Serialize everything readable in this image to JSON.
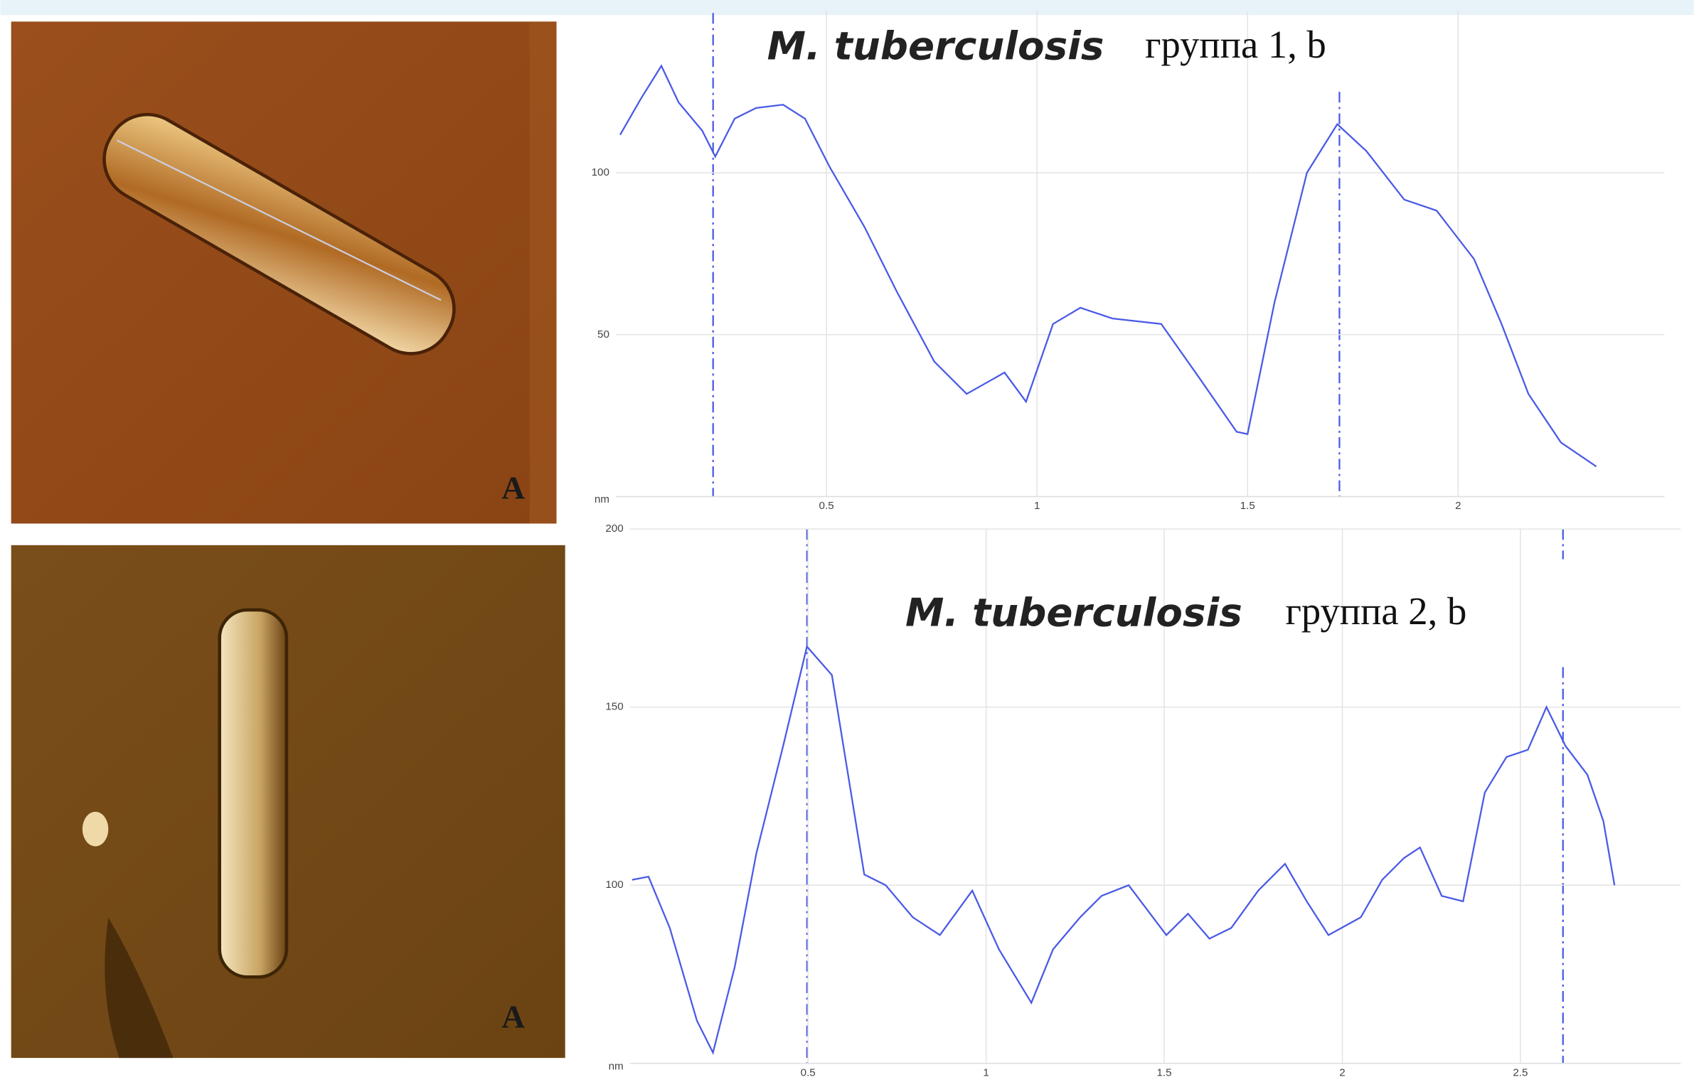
{
  "chart_data": [
    {
      "type": "line",
      "title": "M. tuberculosis",
      "subtitle": "группа 1, b",
      "y_label": "nm",
      "color": "#4a5ae6",
      "grid": true,
      "xlim": [
        0,
        2.49
      ],
      "xticks": [
        0.5,
        1,
        1.5,
        2
      ],
      "ylim": [
        0,
        150
      ],
      "yticks": [
        50,
        100
      ],
      "x": [
        0.01,
        0.06,
        0.108,
        0.149,
        0.205,
        0.236,
        0.282,
        0.333,
        0.397,
        0.449,
        0.508,
        0.59,
        0.667,
        0.756,
        0.833,
        0.923,
        0.974,
        1.038,
        1.103,
        1.179,
        1.295,
        1.385,
        1.474,
        1.5,
        1.564,
        1.641,
        1.713,
        1.782,
        1.872,
        1.949,
        2.038,
        2.103,
        2.167,
        2.244,
        2.328
      ],
      "values": [
        111.7,
        123,
        133,
        121.7,
        113,
        105,
        116.7,
        120,
        121,
        116.7,
        101.7,
        83.3,
        63.3,
        41.7,
        31.7,
        38.3,
        29.3,
        53.3,
        58.3,
        55,
        53.3,
        36.7,
        20,
        19.3,
        60,
        100,
        115,
        106.7,
        91.7,
        88.3,
        73.3,
        53.3,
        31.7,
        16.7,
        9.3
      ]
    },
    {
      "type": "line",
      "title": "M. tuberculosis",
      "subtitle": "группа 2, b",
      "y_label": "nm",
      "color": "#4a5ae6",
      "grid": true,
      "xlim": [
        0,
        2.95
      ],
      "xticks": [
        0.5,
        1,
        1.5,
        2,
        2.5
      ],
      "ylim": [
        50,
        200
      ],
      "yticks": [
        100,
        150,
        200
      ],
      "x": [
        0.006,
        0.052,
        0.112,
        0.188,
        0.233,
        0.294,
        0.355,
        0.43,
        0.497,
        0.567,
        0.658,
        0.718,
        0.794,
        0.87,
        0.961,
        1.036,
        1.127,
        1.188,
        1.264,
        1.324,
        1.4,
        1.506,
        1.567,
        1.627,
        1.688,
        1.764,
        1.839,
        1.9,
        1.961,
        2.052,
        2.112,
        2.173,
        2.218,
        2.279,
        2.339,
        2.4,
        2.461,
        2.521,
        2.573,
        2.627,
        2.688,
        2.733,
        2.764
      ],
      "values": [
        101.5,
        102.4,
        88,
        62,
        53,
        77,
        109,
        139,
        167,
        159,
        103,
        100,
        91,
        86,
        98.5,
        82,
        67,
        82,
        91,
        97,
        100,
        86,
        92,
        85,
        88,
        98.5,
        106,
        95.5,
        86,
        91,
        101.5,
        107.6,
        110.6,
        97,
        95.5,
        126,
        136,
        138,
        150,
        139,
        131,
        118,
        100
      ]
    }
  ],
  "images": [
    {
      "label": "A"
    },
    {
      "label": "A"
    }
  ]
}
